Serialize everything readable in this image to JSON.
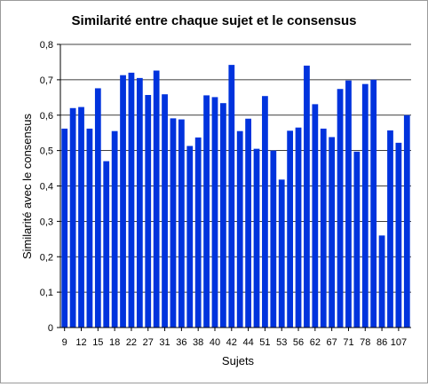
{
  "chart_data": {
    "type": "bar",
    "title": "Similarité entre chaque sujet et le consensus",
    "xlabel": "Sujets",
    "ylabel": "Similarité avec le consensus",
    "ylim": [
      0,
      0.8
    ],
    "yticks": [
      "0",
      "0,1",
      "0,2",
      "0,3",
      "0,4",
      "0,5",
      "0,6",
      "0,7",
      "0,8"
    ],
    "xtick_labels": [
      "9",
      "12",
      "15",
      "18",
      "22",
      "27",
      "31",
      "36",
      "38",
      "40",
      "42",
      "44",
      "51",
      "53",
      "56",
      "62",
      "67",
      "71",
      "78",
      "86",
      "107"
    ],
    "bar_color": "#0033dd",
    "values": [
      0.562,
      0.62,
      0.623,
      0.562,
      0.676,
      0.47,
      0.555,
      0.713,
      0.72,
      0.705,
      0.657,
      0.726,
      0.659,
      0.591,
      0.588,
      0.513,
      0.537,
      0.656,
      0.651,
      0.634,
      0.742,
      0.555,
      0.59,
      0.505,
      0.654,
      0.5,
      0.418,
      0.556,
      0.565,
      0.74,
      0.631,
      0.562,
      0.538,
      0.674,
      0.698,
      0.497,
      0.688,
      0.7,
      0.26,
      0.557,
      0.522,
      0.6
    ]
  }
}
